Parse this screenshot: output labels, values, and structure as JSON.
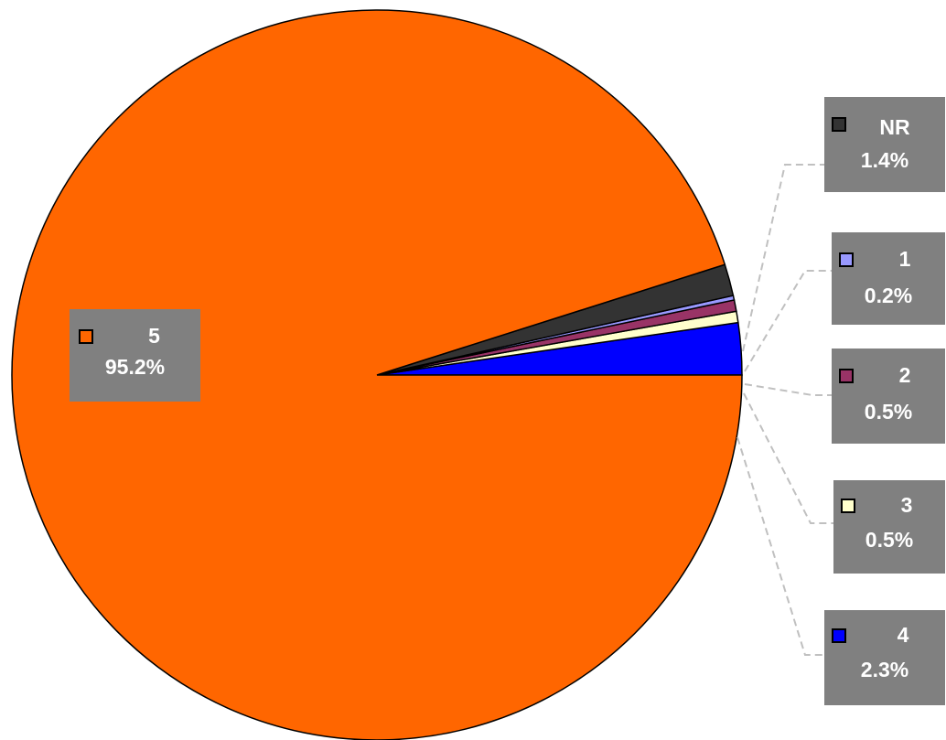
{
  "chart_data": {
    "type": "pie",
    "start_angle_deg": 0,
    "direction": "counterclockwise-from-right",
    "slices": [
      {
        "category": "4",
        "value": 2.3,
        "label": "2.3%",
        "color": "#0000ff"
      },
      {
        "category": "3",
        "value": 0.5,
        "label": "0.5%",
        "color": "#ffffcc"
      },
      {
        "category": "2",
        "value": 0.5,
        "label": "0.5%",
        "color": "#993366"
      },
      {
        "category": "1",
        "value": 0.2,
        "label": "0.2%",
        "color": "#9999ff"
      },
      {
        "category": "NR",
        "value": 1.4,
        "label": "1.4%",
        "color": "#333333"
      },
      {
        "category": "5",
        "value": 95.2,
        "label": "95.2%",
        "color": "#ff6600"
      }
    ],
    "label_background": "#808080",
    "label_text_color": "#ffffff",
    "leader_line_color": "#c0c0c0"
  }
}
